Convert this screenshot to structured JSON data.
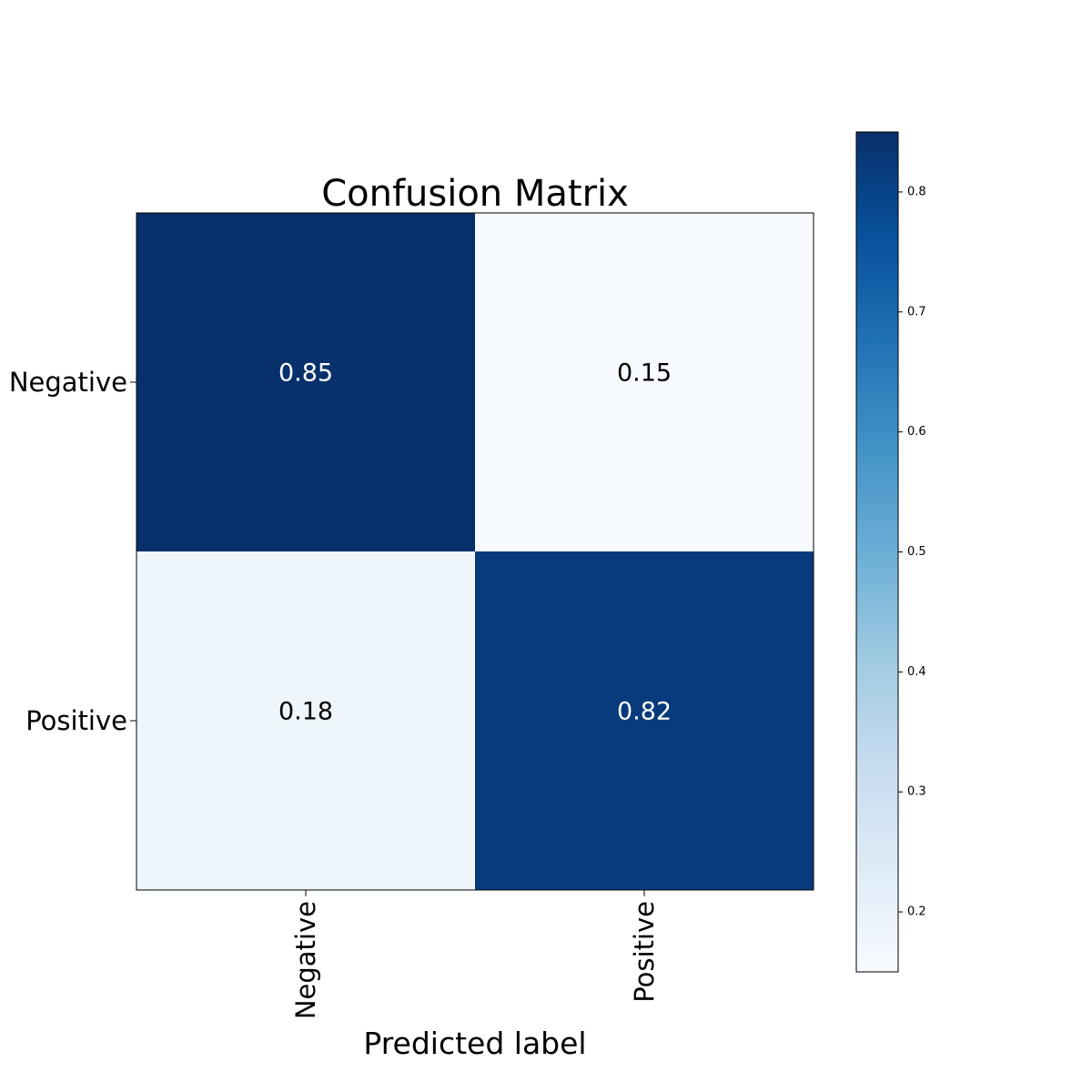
{
  "chart_data": {
    "type": "heatmap",
    "title": "Confusion Matrix",
    "xlabel": "Predicted label",
    "ylabel": "",
    "x_categories": [
      "Negative",
      "Positive"
    ],
    "y_categories": [
      "Negative",
      "Positive"
    ],
    "matrix": [
      [
        0.85,
        0.15
      ],
      [
        0.18,
        0.82
      ]
    ],
    "cell_labels": [
      [
        "0.85",
        "0.15"
      ],
      [
        "0.18",
        "0.82"
      ]
    ],
    "colormap": "Blues",
    "colorbar": {
      "range": [
        0.15,
        0.85
      ],
      "ticks": [
        0.2,
        0.3,
        0.4,
        0.5,
        0.6,
        0.7,
        0.8
      ],
      "tick_labels": [
        "0.2",
        "0.3",
        "0.4",
        "0.5",
        "0.6",
        "0.7",
        "0.8"
      ]
    }
  },
  "colors": {
    "cmap_stops": [
      "#f7fbff",
      "#deebf7",
      "#c6dbef",
      "#9ecae1",
      "#6baed6",
      "#4292c6",
      "#2171b5",
      "#08519c",
      "#08306b"
    ],
    "text_on_dark": "#ffffff",
    "text_on_light": "#000000",
    "frame": "#000000"
  }
}
